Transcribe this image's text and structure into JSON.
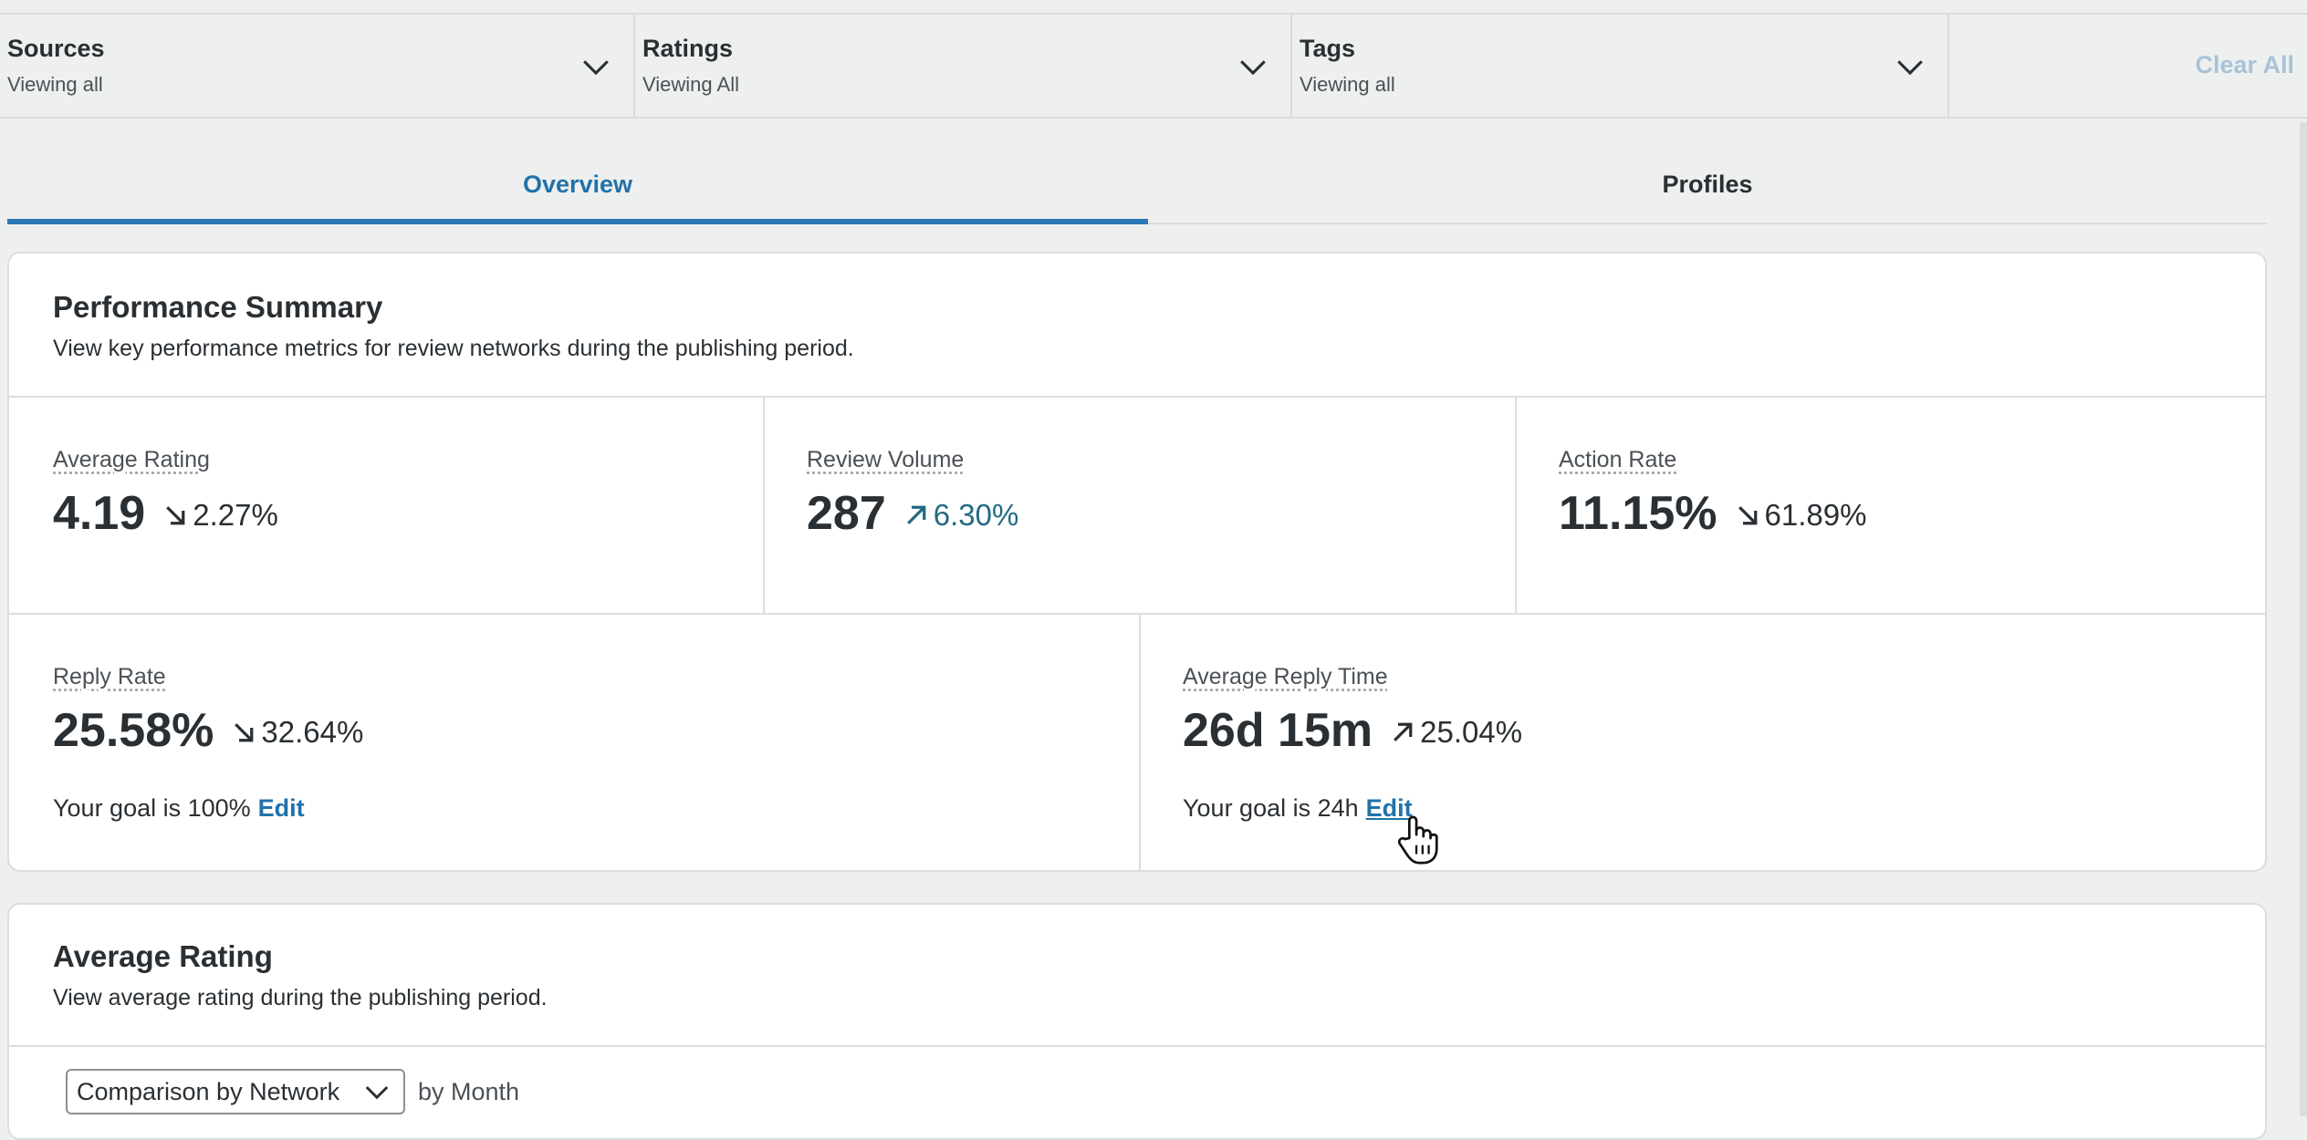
{
  "filters": [
    {
      "title": "Sources",
      "subtitle": "Viewing all"
    },
    {
      "title": "Ratings",
      "subtitle": "Viewing All"
    },
    {
      "title": "Tags",
      "subtitle": "Viewing all"
    }
  ],
  "clear_all": "Clear All",
  "tabs": [
    {
      "label": "Overview",
      "active": true
    },
    {
      "label": "Profiles",
      "active": false
    }
  ],
  "performance": {
    "title": "Performance Summary",
    "description": "View key performance metrics for review networks during the publishing period.",
    "metrics": {
      "avg_rating": {
        "label": "Average Rating",
        "value": "4.19",
        "change": "2.27%",
        "direction": "down"
      },
      "review_volume": {
        "label": "Review Volume",
        "value": "287",
        "change": "6.30%",
        "direction": "up"
      },
      "action_rate": {
        "label": "Action Rate",
        "value": "11.15%",
        "change": "61.89%",
        "direction": "down"
      },
      "reply_rate": {
        "label": "Reply Rate",
        "value": "25.58%",
        "change": "32.64%",
        "direction": "down",
        "goal": "Your goal is 100%",
        "edit": "Edit"
      },
      "avg_reply_time": {
        "label": "Average Reply Time",
        "value": "26d 15m",
        "change": "25.04%",
        "direction": "up",
        "goal": "Your goal is 24h",
        "edit": "Edit"
      }
    }
  },
  "avg_rating_section": {
    "title": "Average Rating",
    "description": "View average rating during the publishing period.",
    "dropdown_value": "Comparison by Network",
    "by_label": "by Month"
  },
  "colors": {
    "accent": "#2172a9",
    "teal": "#226b82",
    "clear_all": "#a7c3d9"
  }
}
